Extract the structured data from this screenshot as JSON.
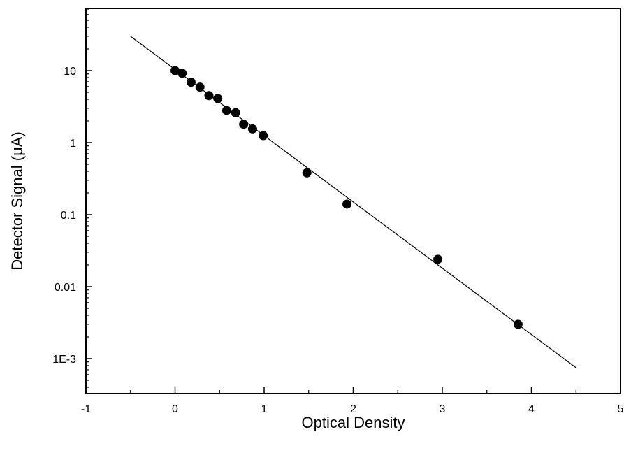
{
  "chart_data": {
    "type": "scatter",
    "xlabel": "Optical Density",
    "ylabel": "Detector Signal (μA)",
    "xlim": [
      -1,
      5
    ],
    "ylim": [
      0.0003,
      80
    ],
    "yscale": "log",
    "grid": false,
    "x_ticks": [
      -1,
      0,
      1,
      2,
      3,
      4,
      5
    ],
    "x_tick_labels": [
      "-1",
      "0",
      "1",
      "2",
      "3",
      "4",
      "5"
    ],
    "y_ticks": [
      10,
      1,
      0.1,
      0.01,
      0.001
    ],
    "y_tick_labels": [
      "10",
      "1",
      "0.1",
      "0.01",
      "1E-3"
    ],
    "series": [
      {
        "type": "scatter",
        "marker": "filled-circle",
        "color": "#000000",
        "x": [
          0.0,
          0.08,
          0.18,
          0.28,
          0.38,
          0.48,
          0.58,
          0.68,
          0.77,
          0.87,
          0.99,
          1.48,
          1.93,
          2.95,
          3.85
        ],
        "y": [
          10.0,
          9.2,
          6.9,
          5.9,
          4.5,
          4.1,
          2.8,
          2.6,
          1.8,
          1.55,
          1.25,
          0.38,
          0.14,
          0.024,
          0.003
        ]
      },
      {
        "type": "line",
        "color": "#000000",
        "x": [
          -0.5,
          4.5
        ],
        "y": [
          30,
          0.00075
        ]
      }
    ]
  }
}
